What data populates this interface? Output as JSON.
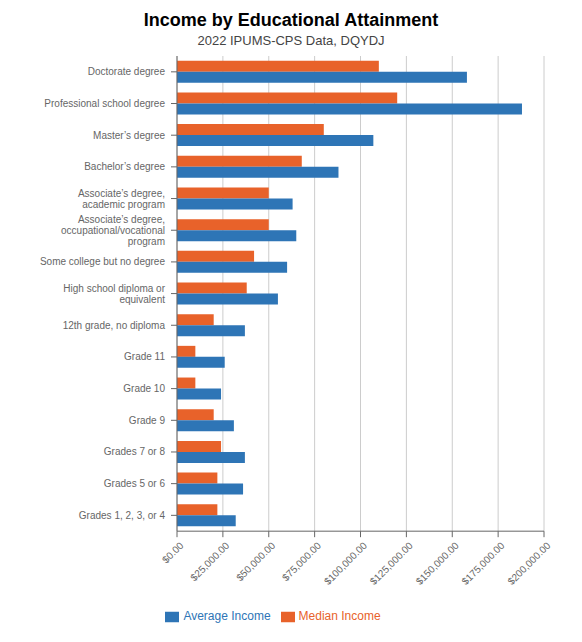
{
  "chart_data": {
    "type": "bar",
    "orientation": "horizontal",
    "title": "Income by Educational Attainment",
    "subtitle": "2022 IPUMS-CPS Data, DQYDJ",
    "categories": [
      "Doctorate degree",
      "Professional school degree",
      "Master’s degree",
      "Bachelor’s degree",
      "Associate’s degree, academic program",
      "Associate’s degree, occupational/vocational program",
      "Some college but no degree",
      "High school diploma or equivalent",
      "12th grade, no diploma",
      "Grade 11",
      "Grade 10",
      "Grade 9",
      "Grades 7 or 8",
      "Grades 5 or 6",
      "Grades 1, 2, 3, or 4"
    ],
    "series": [
      {
        "name": "Median Income",
        "color": "#E8622A",
        "values": [
          110000,
          120000,
          80000,
          68000,
          50000,
          50000,
          42000,
          38000,
          20000,
          10000,
          10000,
          20000,
          24000,
          22000,
          22000
        ]
      },
      {
        "name": "Average Income",
        "color": "#2E75B6",
        "values": [
          158000,
          188000,
          107000,
          88000,
          63000,
          65000,
          60000,
          55000,
          37000,
          26000,
          24000,
          31000,
          37000,
          36000,
          32000
        ]
      }
    ],
    "xlim": [
      0,
      200000
    ],
    "xticks": [
      {
        "value": 0,
        "label": "$0.00"
      },
      {
        "value": 25000,
        "label": "$25,000.00"
      },
      {
        "value": 50000,
        "label": "$50,000.00"
      },
      {
        "value": 75000,
        "label": "$75,000.00"
      },
      {
        "value": 100000,
        "label": "$100,000.00"
      },
      {
        "value": 125000,
        "label": "$125,000.00"
      },
      {
        "value": 150000,
        "label": "$150,000.00"
      },
      {
        "value": 175000,
        "label": "$175,000.00"
      },
      {
        "value": 200000,
        "label": "$200,000.00"
      }
    ],
    "grid": true,
    "legend": "bottom"
  }
}
